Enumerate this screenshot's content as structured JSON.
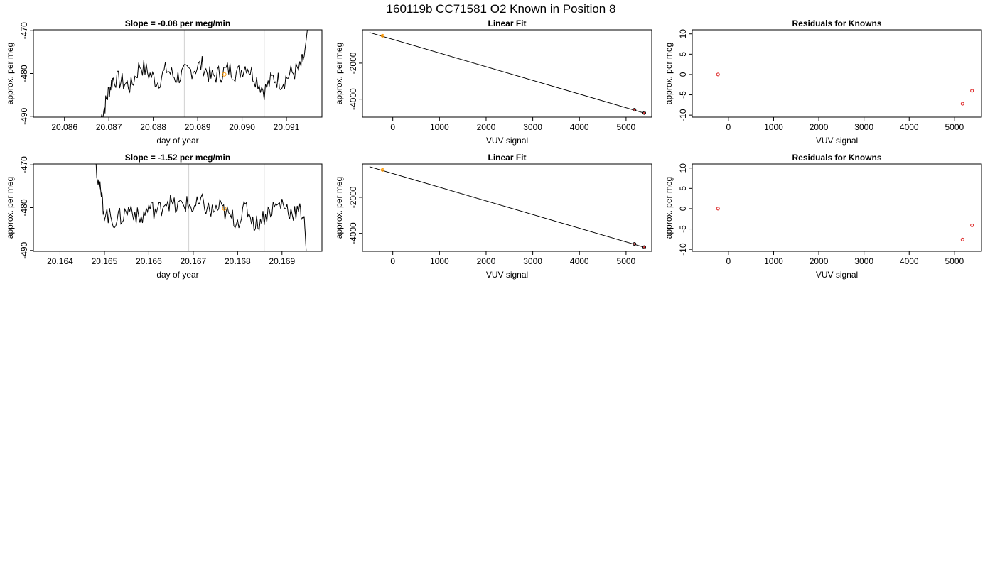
{
  "page_title": "160119b     CC71581   O2 Known in Position  8",
  "colors": {
    "trace": "#000000",
    "fit_line": "#000000",
    "vline": "#d0d0d0",
    "highlight": "#ff9900",
    "residual": "#dd2222",
    "frame": "#000000"
  },
  "chart_data": [
    {
      "type": "line",
      "title": "Slope =  -0.08  per meg/min",
      "xlabel": "day of year",
      "ylabel": "approx. per meg",
      "xlim": [
        20.0853,
        20.0918
      ],
      "ylim": [
        -490.2,
        -469.8
      ],
      "xticks": [
        "20.086",
        "20.087",
        "20.088",
        "20.089",
        "20.090",
        "20.091"
      ],
      "yticks": [
        "-470",
        "-480",
        "-490"
      ],
      "vlines": [
        20.0887,
        20.0905
      ],
      "highlight_point": {
        "x": 20.0896,
        "y": -480.2
      },
      "x": [
        20.0868,
        20.0869,
        20.087,
        20.0871,
        20.0873,
        20.0875,
        20.0877,
        20.0879,
        20.0881,
        20.0883,
        20.0885,
        20.0887,
        20.0889,
        20.0891,
        20.0893,
        20.0895,
        20.0897,
        20.0899,
        20.0901,
        20.0903,
        20.0905,
        20.0907,
        20.0909,
        20.0911,
        20.0913,
        20.0914,
        20.09148
      ],
      "y": [
        -491,
        -488,
        -484,
        -481,
        -482,
        -483,
        -478,
        -480,
        -482,
        -479,
        -481,
        -480,
        -479,
        -478,
        -481,
        -480,
        -479,
        -480,
        -478,
        -481,
        -484,
        -481,
        -482,
        -480,
        -479,
        -476,
        -469
      ]
    },
    {
      "type": "scatter",
      "title": "Linear Fit",
      "xlabel": "VUV signal",
      "ylabel": "approx. per meg",
      "xlim": [
        -650,
        5550
      ],
      "ylim": [
        -5000,
        -150
      ],
      "xticks": [
        "0",
        "1000",
        "2000",
        "3000",
        "4000",
        "5000"
      ],
      "yticks": [
        "-2000",
        "-4000"
      ],
      "fit_line": {
        "x": [
          -500,
          5400
        ],
        "y": [
          -300,
          -4780
        ]
      },
      "points": [
        {
          "x": -220,
          "y": -480,
          "highlight": true
        },
        {
          "x": 5180,
          "y": -4590,
          "highlight": false
        },
        {
          "x": 5390,
          "y": -4770,
          "highlight": false
        }
      ]
    },
    {
      "type": "scatter",
      "title": "Residuals for Knowns",
      "xlabel": "VUV signal",
      "ylabel": "approx. per meg",
      "xlim": [
        -800,
        5600
      ],
      "ylim": [
        -10.5,
        11
      ],
      "xticks": [
        "0",
        "1000",
        "2000",
        "3000",
        "4000",
        "5000"
      ],
      "yticks": [
        "10",
        "5",
        "0",
        "-5",
        "-10"
      ],
      "points": [
        {
          "x": -230,
          "y": 0
        },
        {
          "x": 5180,
          "y": -7.2
        },
        {
          "x": 5390,
          "y": -4.0
        }
      ]
    },
    {
      "type": "line",
      "title": "Slope =  -1.52  per meg/min",
      "xlabel": "day of year",
      "ylabel": "approx. per meg",
      "xlim": [
        20.1634,
        20.1699
      ],
      "ylim": [
        -490.2,
        -469.8
      ],
      "xticks": [
        "20.164",
        "20.165",
        "20.166",
        "20.167",
        "20.168",
        "20.169"
      ],
      "yticks": [
        "-470",
        "-480",
        "-490"
      ],
      "vlines": [
        20.1669,
        20.1686
      ],
      "highlight_point": {
        "x": 20.1677,
        "y": -480.2
      },
      "x": [
        20.1648,
        20.1649,
        20.165,
        20.1652,
        20.1654,
        20.1656,
        20.1658,
        20.166,
        20.1662,
        20.1664,
        20.1666,
        20.1668,
        20.167,
        20.1672,
        20.1674,
        20.1676,
        20.1678,
        20.168,
        20.1682,
        20.1684,
        20.1686,
        20.1688,
        20.169,
        20.1692,
        20.1694,
        20.1695,
        20.16955
      ],
      "y": [
        -469,
        -476,
        -481,
        -483,
        -482,
        -480,
        -483,
        -480,
        -481,
        -478,
        -480,
        -479,
        -480,
        -479,
        -481,
        -480,
        -482,
        -483,
        -480,
        -484,
        -482,
        -480,
        -479,
        -481,
        -481,
        -482,
        -491
      ]
    },
    {
      "type": "scatter",
      "title": "Linear Fit",
      "xlabel": "VUV signal",
      "ylabel": "approx. per meg",
      "xlim": [
        -650,
        5550
      ],
      "ylim": [
        -5000,
        -150
      ],
      "xticks": [
        "0",
        "1000",
        "2000",
        "3000",
        "4000",
        "5000"
      ],
      "yticks": [
        "-2000",
        "-4000"
      ],
      "fit_line": {
        "x": [
          -500,
          5400
        ],
        "y": [
          -300,
          -4780
        ]
      },
      "points": [
        {
          "x": -220,
          "y": -480,
          "highlight": true
        },
        {
          "x": 5180,
          "y": -4590,
          "highlight": false
        },
        {
          "x": 5390,
          "y": -4770,
          "highlight": false
        }
      ]
    },
    {
      "type": "scatter",
      "title": "Residuals for Knowns",
      "xlabel": "VUV signal",
      "ylabel": "approx. per meg",
      "xlim": [
        -800,
        5600
      ],
      "ylim": [
        -10.5,
        11
      ],
      "xticks": [
        "0",
        "1000",
        "2000",
        "3000",
        "4000",
        "5000"
      ],
      "yticks": [
        "10",
        "5",
        "0",
        "-5",
        "-10"
      ],
      "points": [
        {
          "x": -230,
          "y": 0
        },
        {
          "x": 5180,
          "y": -7.6
        },
        {
          "x": 5390,
          "y": -4.1
        }
      ]
    }
  ]
}
